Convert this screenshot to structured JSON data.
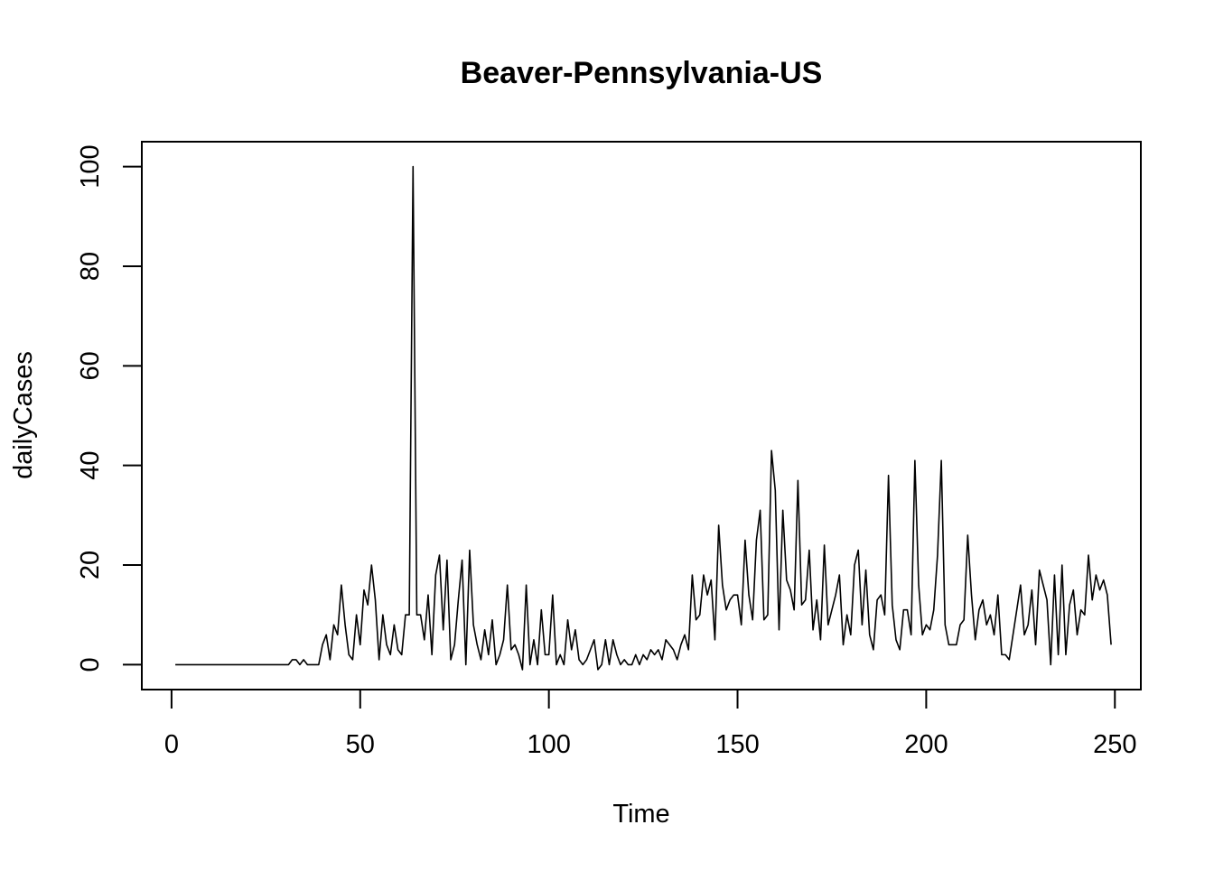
{
  "chart_data": {
    "type": "line",
    "title": "Beaver-Pennsylvania-US",
    "xlabel": "Time",
    "ylabel": "dailyCases",
    "xlim": [
      -7.88,
      256.88
    ],
    "ylim": [
      -5,
      105
    ],
    "xticks": [
      0,
      50,
      100,
      150,
      200,
      250
    ],
    "yticks": [
      0,
      20,
      40,
      60,
      80,
      100
    ],
    "grid": false,
    "line_color": "#000000",
    "series": [
      {
        "x_start": 1,
        "values": [
          0,
          0,
          0,
          0,
          0,
          0,
          0,
          0,
          0,
          0,
          0,
          0,
          0,
          0,
          0,
          0,
          0,
          0,
          0,
          0,
          0,
          0,
          0,
          0,
          0,
          0,
          0,
          0,
          0,
          0,
          0,
          1,
          1,
          0,
          1,
          0,
          0,
          0,
          0,
          4,
          6,
          1,
          8,
          6,
          16,
          8,
          2,
          1,
          10,
          4,
          15,
          12,
          20,
          13,
          1,
          10,
          4,
          2,
          8,
          3,
          2,
          10,
          10,
          100,
          10,
          10,
          5,
          14,
          2,
          18,
          22,
          7,
          21,
          1,
          4,
          13,
          21,
          0,
          23,
          8,
          4,
          1,
          7,
          2,
          9,
          0,
          2,
          5,
          16,
          3,
          4,
          2,
          -1,
          16,
          0,
          5,
          0,
          11,
          2,
          2,
          14,
          0,
          2,
          0,
          9,
          3,
          7,
          1,
          0,
          1,
          3,
          5,
          -1,
          0,
          5,
          0,
          5,
          2,
          0,
          1,
          0,
          0,
          2,
          0,
          2,
          1,
          3,
          2,
          3,
          1,
          5,
          4,
          3,
          1,
          4,
          6,
          3,
          18,
          9,
          10,
          18,
          14,
          17,
          5,
          28,
          16,
          11,
          13,
          14,
          14,
          8,
          25,
          14,
          9,
          25,
          31,
          9,
          10,
          43,
          35,
          7,
          31,
          17,
          15,
          11,
          37,
          12,
          13,
          23,
          7,
          13,
          5,
          24,
          8,
          11,
          14,
          18,
          4,
          10,
          6,
          20,
          23,
          8,
          19,
          6,
          3,
          13,
          14,
          10,
          38,
          12,
          5,
          3,
          11,
          11,
          6,
          41,
          16,
          6,
          8,
          7,
          11,
          22,
          41,
          8,
          4,
          4,
          4,
          8,
          9,
          26,
          14,
          5,
          11,
          13,
          8,
          10,
          6,
          14,
          2,
          2,
          1,
          6,
          11,
          16,
          6,
          8,
          15,
          4,
          19,
          16,
          13,
          0,
          18,
          2,
          20,
          2,
          12,
          15,
          6,
          11,
          10,
          22,
          13,
          18,
          15,
          17,
          14,
          4
        ]
      }
    ]
  }
}
